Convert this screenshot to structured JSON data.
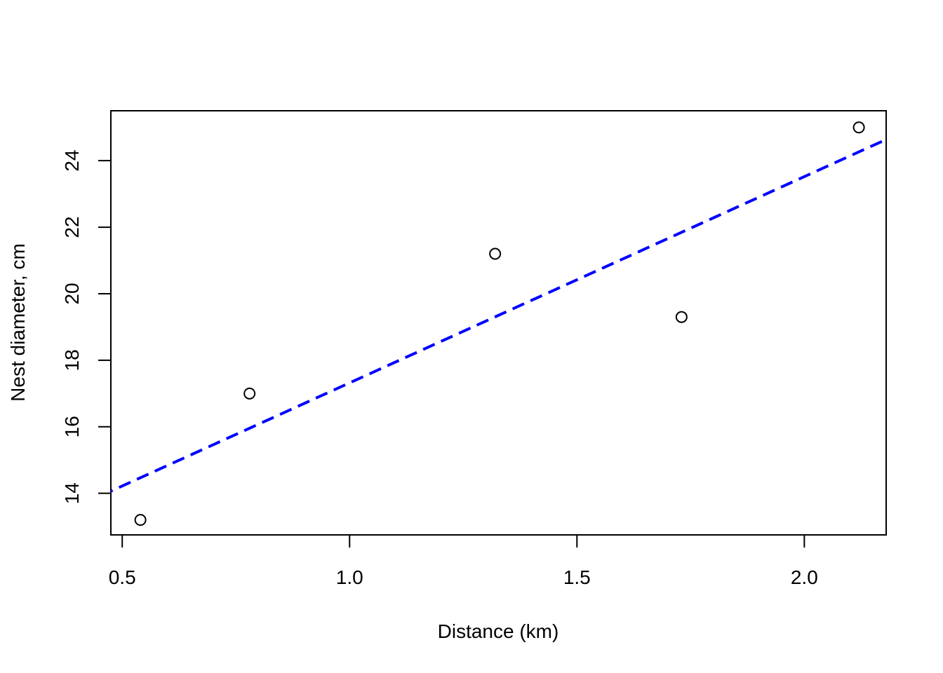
{
  "chart_data": {
    "type": "scatter",
    "title": "",
    "xlabel": "Distance (km)",
    "ylabel": "Nest diameter, cm",
    "xlim": [
      0.475,
      2.18
    ],
    "ylim": [
      12.75,
      25.5
    ],
    "xticks": [
      0.5,
      1.0,
      1.5,
      2.0
    ],
    "xtick_labels": [
      "0.5",
      "1.0",
      "1.5",
      "2.0"
    ],
    "yticks": [
      14,
      16,
      18,
      20,
      22,
      24
    ],
    "ytick_labels": [
      "14",
      "16",
      "18",
      "20",
      "22",
      "24"
    ],
    "grid": false,
    "points": [
      {
        "x": 0.54,
        "y": 13.2
      },
      {
        "x": 0.78,
        "y": 17.0
      },
      {
        "x": 1.32,
        "y": 21.2
      },
      {
        "x": 1.73,
        "y": 19.3
      },
      {
        "x": 2.12,
        "y": 25.0
      }
    ],
    "fit_line": {
      "intercept": 11.12,
      "slope": 6.2,
      "color": "#0000ff",
      "style": "dashed"
    },
    "point_color": "#000000"
  }
}
